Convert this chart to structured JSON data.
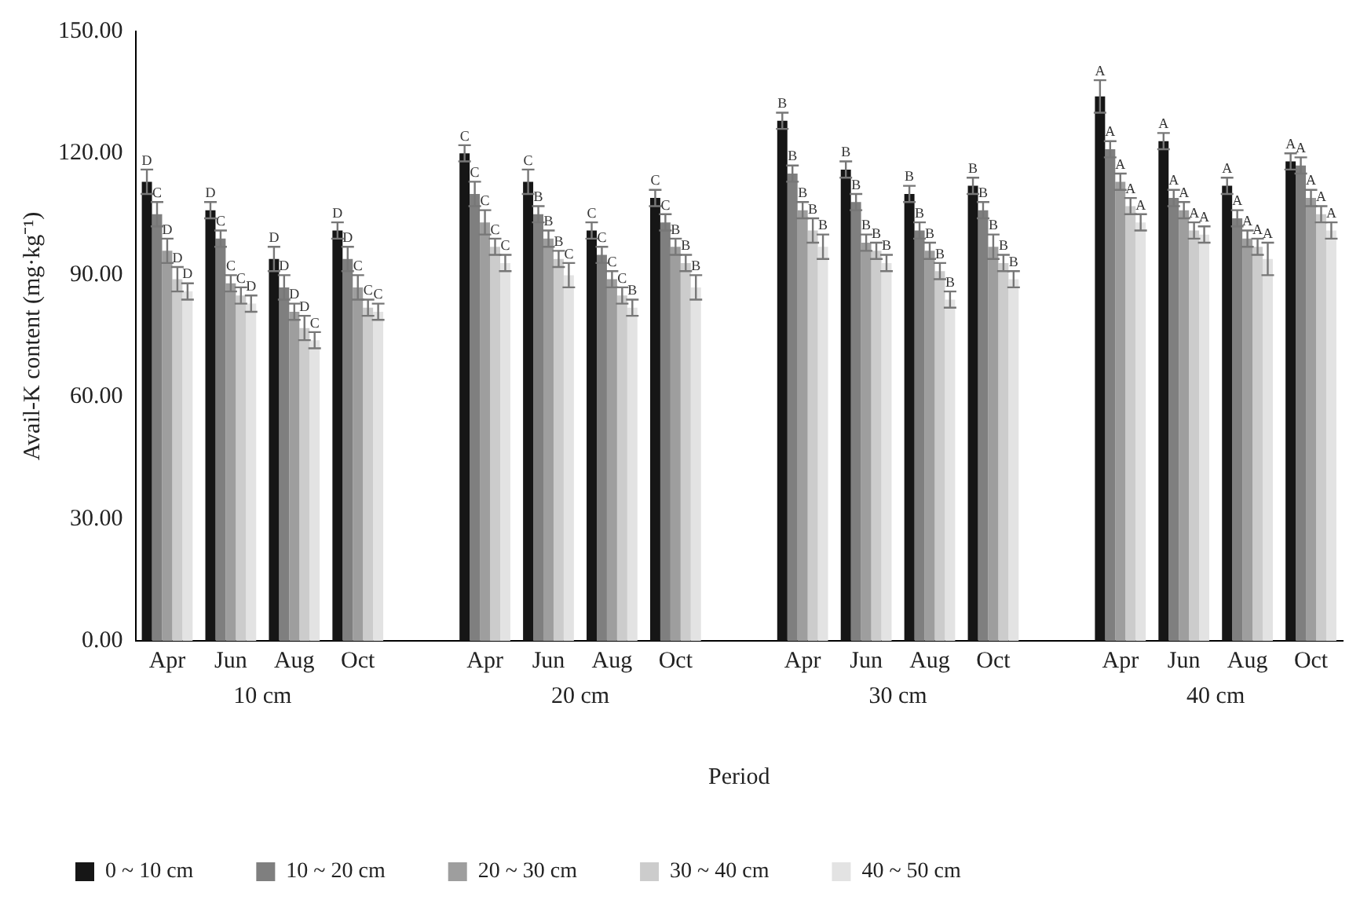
{
  "chart_data": {
    "type": "bar",
    "xlabel": "Period",
    "ylabel": "Avail-K content (mg·kg⁻¹)",
    "categories": [
      "Apr",
      "Jun",
      "Aug",
      "Oct",
      null,
      "Apr",
      "Jun",
      "Aug",
      "Oct",
      null,
      "Apr",
      "Jun",
      "Aug",
      "Oct",
      null,
      "Apr",
      "Jun",
      "Aug",
      "Oct"
    ],
    "annotations": [
      "10 cm",
      "20 cm",
      "30 cm",
      "40 cm"
    ],
    "series": [
      {
        "name": "0 ~ 10 cm",
        "color": "#161616",
        "values": [
          113,
          106,
          94,
          101,
          null,
          120,
          113,
          101,
          109,
          null,
          128,
          116,
          110,
          112,
          null,
          134,
          123,
          112,
          118
        ],
        "errors": [
          3,
          2,
          3,
          2,
          null,
          2,
          3,
          2,
          2,
          null,
          2,
          2,
          2,
          2,
          null,
          4,
          2,
          2,
          2
        ],
        "value_labels": [
          "D",
          "D",
          "D",
          "D",
          null,
          "C",
          "C",
          "C",
          "C",
          null,
          "B",
          "B",
          "B",
          "B",
          null,
          "A",
          "A",
          "A",
          "A"
        ]
      },
      {
        "name": "10 ~ 20 cm",
        "color": "#7f7f7f",
        "values": [
          105,
          99,
          87,
          94,
          null,
          110,
          105,
          95,
          103,
          null,
          115,
          108,
          101,
          106,
          null,
          121,
          109,
          104,
          117
        ],
        "errors": [
          3,
          2,
          3,
          3,
          null,
          3,
          2,
          2,
          2,
          null,
          2,
          2,
          2,
          2,
          null,
          2,
          2,
          2,
          2
        ],
        "value_labels": [
          "C",
          "C",
          "D",
          "D",
          null,
          "C",
          "B",
          "C",
          "C",
          null,
          "B",
          "B",
          "B",
          "B",
          null,
          "A",
          "A",
          "A",
          "A"
        ]
      },
      {
        "name": "20 ~ 30 cm",
        "color": "#9e9e9e",
        "values": [
          96,
          88,
          81,
          87,
          null,
          103,
          99,
          89,
          97,
          null,
          106,
          98,
          96,
          97,
          null,
          113,
          106,
          99,
          109
        ],
        "errors": [
          3,
          2,
          2,
          3,
          null,
          3,
          2,
          2,
          2,
          null,
          2,
          2,
          2,
          3,
          null,
          2,
          2,
          2,
          2
        ],
        "value_labels": [
          "D",
          "C",
          "D",
          "C",
          null,
          "C",
          "B",
          "C",
          "B",
          null,
          "B",
          "B",
          "B",
          "B",
          null,
          "A",
          "A",
          "A",
          "A"
        ]
      },
      {
        "name": "30 ~ 40 cm",
        "color": "#cccccc",
        "values": [
          89,
          85,
          77,
          82,
          null,
          97,
          94,
          85,
          93,
          null,
          101,
          96,
          91,
          93,
          null,
          107,
          101,
          97,
          105
        ],
        "errors": [
          3,
          2,
          3,
          2,
          null,
          2,
          2,
          2,
          2,
          null,
          3,
          2,
          2,
          2,
          null,
          2,
          2,
          2,
          2
        ],
        "value_labels": [
          "D",
          "C",
          "D",
          "C",
          null,
          "C",
          "B",
          "C",
          "B",
          null,
          "B",
          "B",
          "B",
          "B",
          null,
          "A",
          "A",
          "A",
          "A"
        ]
      },
      {
        "name": "40 ~ 50 cm",
        "color": "#e3e3e3",
        "values": [
          86,
          83,
          74,
          81,
          null,
          93,
          90,
          82,
          87,
          null,
          97,
          93,
          84,
          89,
          null,
          103,
          100,
          94,
          101
        ],
        "errors": [
          2,
          2,
          2,
          2,
          null,
          2,
          3,
          2,
          3,
          null,
          3,
          2,
          2,
          2,
          null,
          2,
          2,
          4,
          2
        ],
        "value_labels": [
          "D",
          "D",
          "C",
          "C",
          null,
          "C",
          "C",
          "B",
          "B",
          null,
          "B",
          "B",
          "B",
          "B",
          null,
          "A",
          "A",
          "A",
          "A"
        ]
      }
    ],
    "ylim": [
      0,
      150
    ],
    "yticks": [
      {
        "value": 0,
        "label": "0.00"
      },
      {
        "value": 30,
        "label": "30.00"
      },
      {
        "value": 60,
        "label": "60.00"
      },
      {
        "value": 90,
        "label": "90.00"
      },
      {
        "value": 120,
        "label": "120.00"
      },
      {
        "value": 150,
        "label": "150.00"
      }
    ],
    "grid": false,
    "legend": "bottom"
  }
}
